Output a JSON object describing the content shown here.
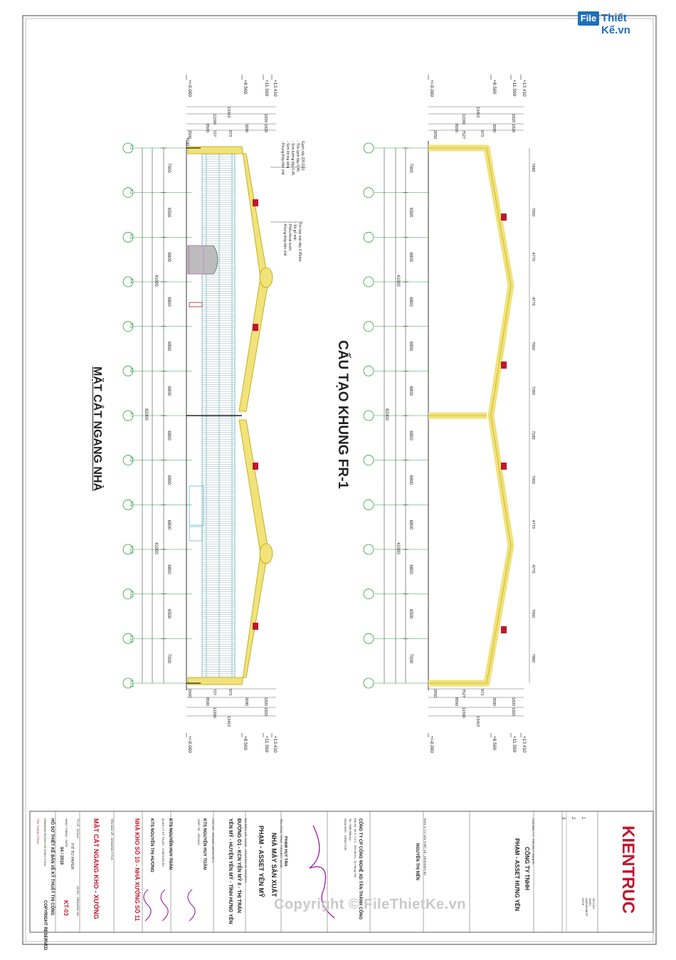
{
  "logo": {
    "mark": "File",
    "text": "Thiết Kế.vn"
  },
  "watermark": "Copyright © FileThietKe.vn",
  "section_titles": {
    "left": "MẶT CẮT NGANG NHÀ",
    "right": "CẤU TẠO KHUNG FR-1"
  },
  "levels": [
    "+/-0.000",
    "+8.500",
    "+11.590",
    "+13.410"
  ],
  "top_dims": {
    "row1": "13410",
    "row2": [
      "11590",
      "1820"
    ],
    "row3": [
      "8500",
      "3090",
      "1820"
    ],
    "row4_left": [
      "2500",
      "727",
      "973"
    ],
    "row4_right": [
      "2650",
      "7527",
      "973"
    ],
    "row5_left": "4100"
  },
  "grid_labels": [
    "X1",
    "X2",
    "X3",
    "X4",
    "X5",
    "X6",
    "X7",
    "X8",
    "X9",
    "X10",
    "X11",
    "X12",
    "X13"
  ],
  "bay_dims_left": [
    "7000",
    "6500",
    "6800",
    "6800",
    "6800",
    "6800",
    "6800",
    "6800",
    "6800",
    "6800",
    "6500",
    "7000"
  ],
  "bay_dims_right": [
    "7000",
    "6500",
    "6800",
    "6800",
    "6800",
    "6800",
    "6800",
    "6800",
    "6800",
    "6800",
    "6500",
    "7000"
  ],
  "span_dims": {
    "half": "41000",
    "full": "82000"
  },
  "rafter_dims": [
    "7880",
    "7950",
    "4770",
    "4770",
    "7950",
    "7280",
    "7280",
    "7950",
    "4770",
    "4770",
    "7950",
    "7880"
  ],
  "notes_top": [
    "Gạch xây 220 D10",
    "- Tôn lạnh dày 0.45",
    "- Sơn tường dày 0.45",
    "- Sơn lót mạ kẽm",
    "- Khung thép tiền chế"
  ],
  "notes_mid": [
    "Tôn lợp mái dày 0.45mm",
    "- Xà gồ mái",
    "- Phễu thoát nước",
    "- Khung thép tiền chế"
  ],
  "title_block": {
    "company_logo": "KIENTRUC",
    "revision_header": [
      "SỐ LẦN",
      "NGÀY",
      "AMENDMENT",
      "DATE"
    ],
    "revisions": [
      "1",
      "2",
      "3"
    ],
    "owner_label": "CHỦ ĐẦU TƯ - PROJECT OWNER:",
    "owner": [
      "CÔNG TY TNHH",
      "PHẠM - ASSET HƯNG YÊN"
    ],
    "consultant_label": "ĐƠN VỊ TƯ VẤN THIẾT KẾ - DESIGNED BY:",
    "consultant_person": "NGUYỄN THỊ MẾN",
    "design_company": [
      "CÔNG TY CP CÔNG NGHỆ XD TẤN THÀNH CÔNG",
      "Địa chỉ: Số 9 - Lô 1 - Khu đô thị - Tp Hưng Yên",
      "Tel: 0986.888.xxx",
      "GIÁM ĐỐC - DIRECTOR:"
    ],
    "director": "PHẠM HUY TẤN",
    "project_label": "TÊN CÔNG TRÌNH - PROJECT NAME:",
    "project": [
      "NHÀ MÁY SẢN XUẤT",
      "PHẠM - ASSET YÊN MỸ"
    ],
    "location_label": "ĐỊA ĐIỂM XÂY DỰNG - LOCATION OF PROJECT:",
    "location": [
      "ĐƯỜNG D1 - KCN YÊN MỸ II - THỊ TRẤN",
      "YÊN MỸ - HUYỆN YÊN MỸ - TỈNH HƯNG YÊN"
    ],
    "chief_label": "CHỦ TRÌ - PRIMARY ARCHITECT:",
    "chief": "KTS NGUYỄN HUY TOÀN",
    "design_label": "THIẾT KẾ - DESIGN:",
    "designer": "KTS NGUYỄN HUY TOÀN",
    "check_label": "QUẢN LÝ KỸ THUẬT - CHECKED BY:",
    "checker": "KTS NGUYỄN THỊ HƯƠNG",
    "building": "NHÀ KHO SỐ 10 - NHÀ XƯỞNG SỐ 11",
    "drawing_label": "TÊN BẢN VẼ - DRAWING TITLE:",
    "drawing_title": "MẶT CẮT NGANG KHO - XƯỞNG",
    "scale_label": "TỶ LỆ - SCALE:",
    "scale": "FIT TO PAPER",
    "date_label": "NGÀY THÁNG - DATE:",
    "date": "04 / 2019",
    "sheet_label": "SỐ BV - DRAWING NO:",
    "sheet_no": "KT-03",
    "stage": [
      "HỒ SƠ THIẾT KẾ BẢN VẼ KỸ THUẬT THI CÔNG",
      "DRAWING DESIGN OF EXECUTION"
    ],
    "copyright": "COPYRIGHT RESERVED",
    "stamp": "TẤN THÀNH CÔNG"
  },
  "colors": {
    "grid": "#2ea043",
    "frame": "#f1e27a",
    "frame_edge": "#b8a400",
    "purlin": "#2f9fb0",
    "ink": "#222222",
    "accent": "#c0162e",
    "signature": "#9a1b9a"
  }
}
